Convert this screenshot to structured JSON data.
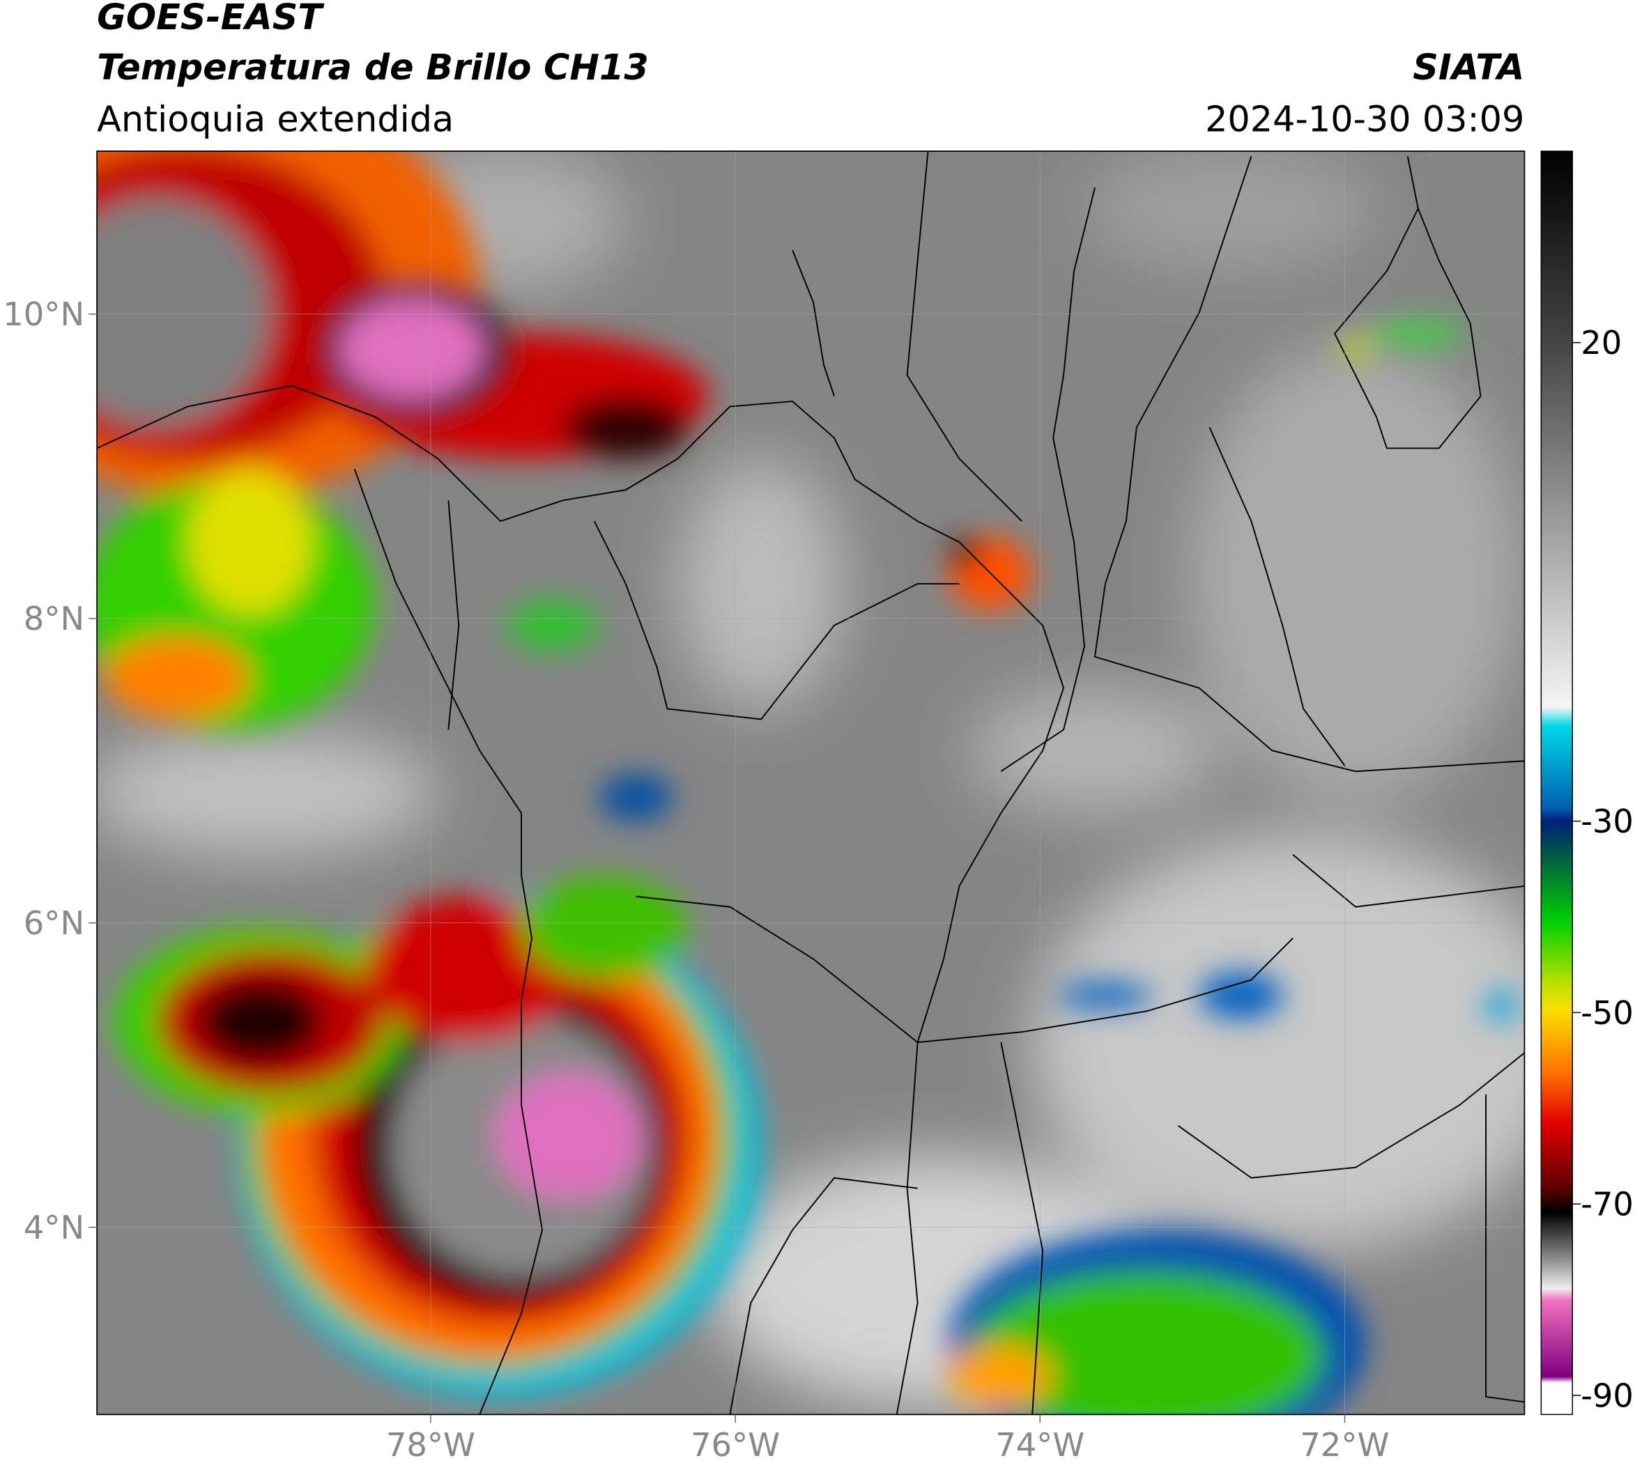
{
  "header": {
    "title": "GOES-EAST",
    "subtitle": "Temperatura de Brillo CH13",
    "region": "Antioquia extendida",
    "source": "SIATA",
    "datetime": "2024-10-30 03:09"
  },
  "map": {
    "xlim": [
      -80.19,
      -70.82
    ],
    "ylim": [
      2.77,
      11.07
    ],
    "xticks": [
      {
        "value": -78,
        "label": "78°W"
      },
      {
        "value": -76,
        "label": "76°W"
      },
      {
        "value": -74,
        "label": "74°W"
      },
      {
        "value": -72,
        "label": "72°W"
      }
    ],
    "yticks": [
      {
        "value": 10,
        "label": "10°N"
      },
      {
        "value": 8,
        "label": "8°N"
      },
      {
        "value": 6,
        "label": "6°N"
      },
      {
        "value": 4,
        "label": "4°N"
      }
    ],
    "grid": true
  },
  "colorbar": {
    "lim": [
      -92,
      40
    ],
    "ticks": [
      20,
      -30,
      -50,
      -70,
      -90
    ]
  }
}
